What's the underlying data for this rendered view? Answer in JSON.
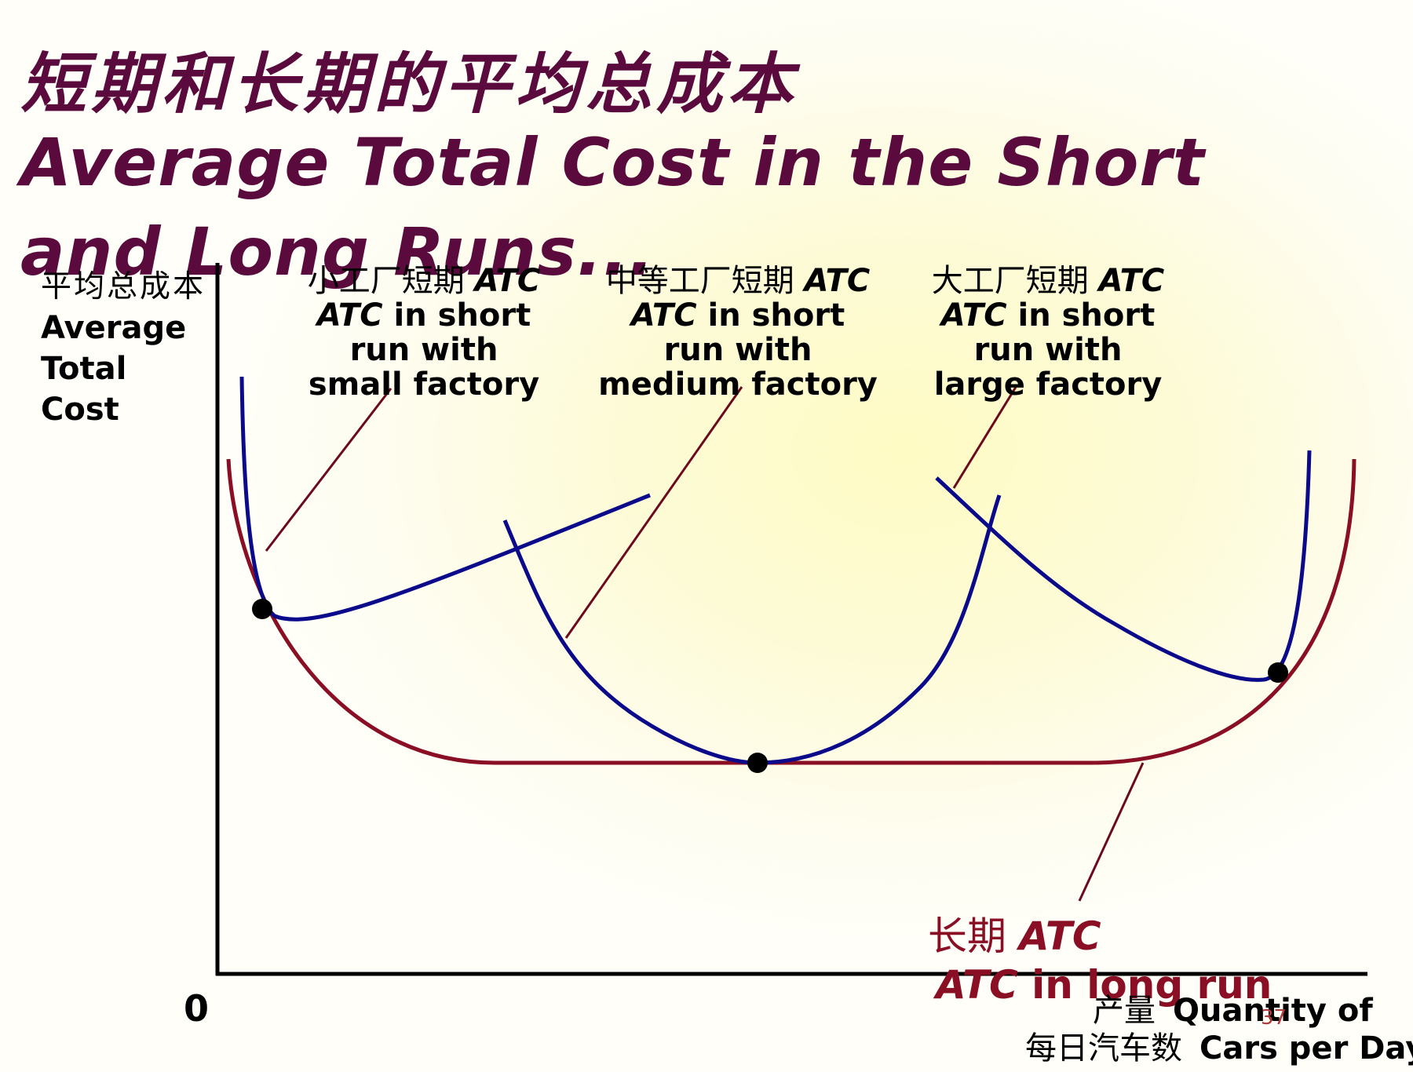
{
  "title": {
    "line_cn": "短期和长期的平均总成本",
    "line_en1": "Average Total Cost in the Short",
    "line_en2": "and Long Runs..."
  },
  "axes": {
    "y_label_cn": "平均总成本",
    "y_label_en_1": "Average",
    "y_label_en_2": "Total",
    "y_label_en_3": "Cost",
    "x_label_cn_1": "产量",
    "x_label_en_1": "Quantity of",
    "x_label_cn_2": "每日汽车数",
    "x_label_en_2": "Cars per Day",
    "origin": "0"
  },
  "curves": {
    "small": {
      "cn": "小工厂短期 ",
      "atc": "ATC",
      "line2_atc": "ATC",
      "line2_rest": " in short",
      "line3": "run with",
      "line4": "small factory"
    },
    "medium": {
      "cn": "中等工厂短期 ",
      "atc": "ATC",
      "line2_atc": "ATC",
      "line2_rest": " in short",
      "line3": "run with",
      "line4": "medium factory"
    },
    "large": {
      "cn": "大工厂短期 ",
      "atc": "ATC",
      "line2_atc": "ATC",
      "line2_rest": " in short",
      "line3": "run with",
      "line4": "large factory"
    },
    "long_run": {
      "cn": "长期 ",
      "atc": "ATC",
      "line2_atc": "ATC",
      "line2_rest": " in long run"
    }
  },
  "page_number": "37",
  "colors": {
    "title": "#5a0a3c",
    "short_run_curves": "#0a0a8a",
    "long_run_curve": "#8a0f24",
    "pointer_lines": "#6b0a1e",
    "axes": "#000000"
  }
}
